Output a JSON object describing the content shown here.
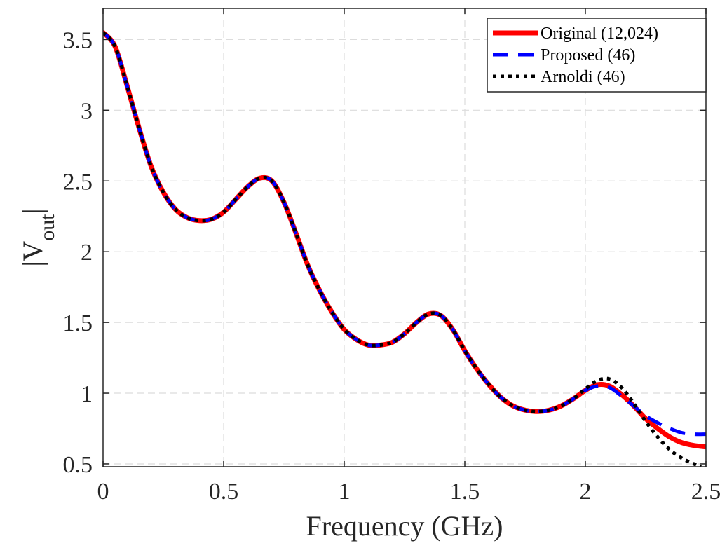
{
  "chart_data": {
    "type": "line",
    "title": "",
    "xlabel": "Frequency (GHz)",
    "ylabel_base": "|V",
    "ylabel_sub": "out",
    "ylabel_end": "|",
    "xlim": [
      0,
      2.5
    ],
    "ylim": [
      0.48,
      3.72
    ],
    "xticks": [
      0,
      0.5,
      1,
      1.5,
      2,
      2.5
    ],
    "xtick_labels": [
      "0",
      "0.5",
      "1",
      "1.5",
      "2",
      "2.5"
    ],
    "yticks": [
      0.5,
      1,
      1.5,
      2,
      2.5,
      3,
      3.5
    ],
    "ytick_labels": [
      "0.5",
      "1",
      "1.5",
      "2",
      "2.5",
      "3",
      "3.5"
    ],
    "grid": true,
    "legend_position": "top-right",
    "series": [
      {
        "name": "Original (12,024)",
        "color": "#ff0000",
        "style": "solid",
        "points": [
          [
            0,
            3.55
          ],
          [
            0.05,
            3.45
          ],
          [
            0.1,
            3.17
          ],
          [
            0.15,
            2.87
          ],
          [
            0.2,
            2.6
          ],
          [
            0.25,
            2.42
          ],
          [
            0.3,
            2.3
          ],
          [
            0.35,
            2.24
          ],
          [
            0.4,
            2.22
          ],
          [
            0.45,
            2.23
          ],
          [
            0.5,
            2.28
          ],
          [
            0.55,
            2.37
          ],
          [
            0.6,
            2.46
          ],
          [
            0.65,
            2.52
          ],
          [
            0.7,
            2.5
          ],
          [
            0.75,
            2.35
          ],
          [
            0.8,
            2.13
          ],
          [
            0.85,
            1.9
          ],
          [
            0.9,
            1.72
          ],
          [
            0.95,
            1.57
          ],
          [
            1.0,
            1.45
          ],
          [
            1.05,
            1.38
          ],
          [
            1.1,
            1.34
          ],
          [
            1.15,
            1.34
          ],
          [
            1.2,
            1.36
          ],
          [
            1.25,
            1.42
          ],
          [
            1.3,
            1.5
          ],
          [
            1.35,
            1.56
          ],
          [
            1.4,
            1.55
          ],
          [
            1.45,
            1.45
          ],
          [
            1.5,
            1.3
          ],
          [
            1.55,
            1.17
          ],
          [
            1.6,
            1.06
          ],
          [
            1.65,
            0.97
          ],
          [
            1.7,
            0.91
          ],
          [
            1.75,
            0.88
          ],
          [
            1.8,
            0.87
          ],
          [
            1.85,
            0.88
          ],
          [
            1.9,
            0.91
          ],
          [
            1.95,
            0.96
          ],
          [
            2.0,
            1.02
          ],
          [
            2.05,
            1.06
          ],
          [
            2.1,
            1.05
          ],
          [
            2.15,
            0.99
          ],
          [
            2.2,
            0.91
          ],
          [
            2.25,
            0.82
          ],
          [
            2.3,
            0.75
          ],
          [
            2.35,
            0.69
          ],
          [
            2.4,
            0.65
          ],
          [
            2.45,
            0.63
          ],
          [
            2.5,
            0.62
          ]
        ]
      },
      {
        "name": "Proposed (46)",
        "color": "#0000ff",
        "style": "dashed",
        "points": [
          [
            0,
            3.55
          ],
          [
            0.05,
            3.45
          ],
          [
            0.1,
            3.17
          ],
          [
            0.15,
            2.87
          ],
          [
            0.2,
            2.6
          ],
          [
            0.25,
            2.42
          ],
          [
            0.3,
            2.3
          ],
          [
            0.35,
            2.24
          ],
          [
            0.4,
            2.22
          ],
          [
            0.45,
            2.23
          ],
          [
            0.5,
            2.28
          ],
          [
            0.55,
            2.37
          ],
          [
            0.6,
            2.46
          ],
          [
            0.65,
            2.52
          ],
          [
            0.7,
            2.5
          ],
          [
            0.75,
            2.35
          ],
          [
            0.8,
            2.13
          ],
          [
            0.85,
            1.9
          ],
          [
            0.9,
            1.72
          ],
          [
            0.95,
            1.57
          ],
          [
            1.0,
            1.45
          ],
          [
            1.05,
            1.38
          ],
          [
            1.1,
            1.34
          ],
          [
            1.15,
            1.34
          ],
          [
            1.2,
            1.36
          ],
          [
            1.25,
            1.42
          ],
          [
            1.3,
            1.5
          ],
          [
            1.35,
            1.56
          ],
          [
            1.4,
            1.55
          ],
          [
            1.45,
            1.45
          ],
          [
            1.5,
            1.3
          ],
          [
            1.55,
            1.17
          ],
          [
            1.6,
            1.06
          ],
          [
            1.65,
            0.97
          ],
          [
            1.7,
            0.91
          ],
          [
            1.75,
            0.88
          ],
          [
            1.8,
            0.87
          ],
          [
            1.85,
            0.88
          ],
          [
            1.9,
            0.91
          ],
          [
            1.95,
            0.96
          ],
          [
            2.0,
            1.02
          ],
          [
            2.05,
            1.05
          ],
          [
            2.1,
            1.04
          ],
          [
            2.15,
            0.98
          ],
          [
            2.2,
            0.91
          ],
          [
            2.25,
            0.84
          ],
          [
            2.3,
            0.79
          ],
          [
            2.35,
            0.75
          ],
          [
            2.4,
            0.72
          ],
          [
            2.45,
            0.71
          ],
          [
            2.5,
            0.71
          ]
        ]
      },
      {
        "name": "Arnoldi (46)",
        "color": "#000000",
        "style": "dotted",
        "points": [
          [
            0,
            3.55
          ],
          [
            0.05,
            3.45
          ],
          [
            0.1,
            3.17
          ],
          [
            0.15,
            2.87
          ],
          [
            0.2,
            2.6
          ],
          [
            0.25,
            2.42
          ],
          [
            0.3,
            2.3
          ],
          [
            0.35,
            2.24
          ],
          [
            0.4,
            2.22
          ],
          [
            0.45,
            2.23
          ],
          [
            0.5,
            2.28
          ],
          [
            0.55,
            2.37
          ],
          [
            0.6,
            2.46
          ],
          [
            0.65,
            2.52
          ],
          [
            0.7,
            2.5
          ],
          [
            0.75,
            2.35
          ],
          [
            0.8,
            2.13
          ],
          [
            0.85,
            1.9
          ],
          [
            0.9,
            1.72
          ],
          [
            0.95,
            1.57
          ],
          [
            1.0,
            1.45
          ],
          [
            1.05,
            1.38
          ],
          [
            1.1,
            1.34
          ],
          [
            1.15,
            1.34
          ],
          [
            1.2,
            1.36
          ],
          [
            1.25,
            1.42
          ],
          [
            1.3,
            1.5
          ],
          [
            1.35,
            1.56
          ],
          [
            1.4,
            1.55
          ],
          [
            1.45,
            1.45
          ],
          [
            1.5,
            1.3
          ],
          [
            1.55,
            1.17
          ],
          [
            1.6,
            1.06
          ],
          [
            1.65,
            0.97
          ],
          [
            1.7,
            0.91
          ],
          [
            1.75,
            0.88
          ],
          [
            1.8,
            0.87
          ],
          [
            1.85,
            0.88
          ],
          [
            1.9,
            0.91
          ],
          [
            1.95,
            0.96
          ],
          [
            2.0,
            1.03
          ],
          [
            2.05,
            1.09
          ],
          [
            2.1,
            1.1
          ],
          [
            2.15,
            1.04
          ],
          [
            2.2,
            0.93
          ],
          [
            2.25,
            0.8
          ],
          [
            2.3,
            0.69
          ],
          [
            2.35,
            0.6
          ],
          [
            2.4,
            0.54
          ],
          [
            2.45,
            0.5
          ],
          [
            2.48,
            0.48
          ]
        ]
      }
    ]
  }
}
